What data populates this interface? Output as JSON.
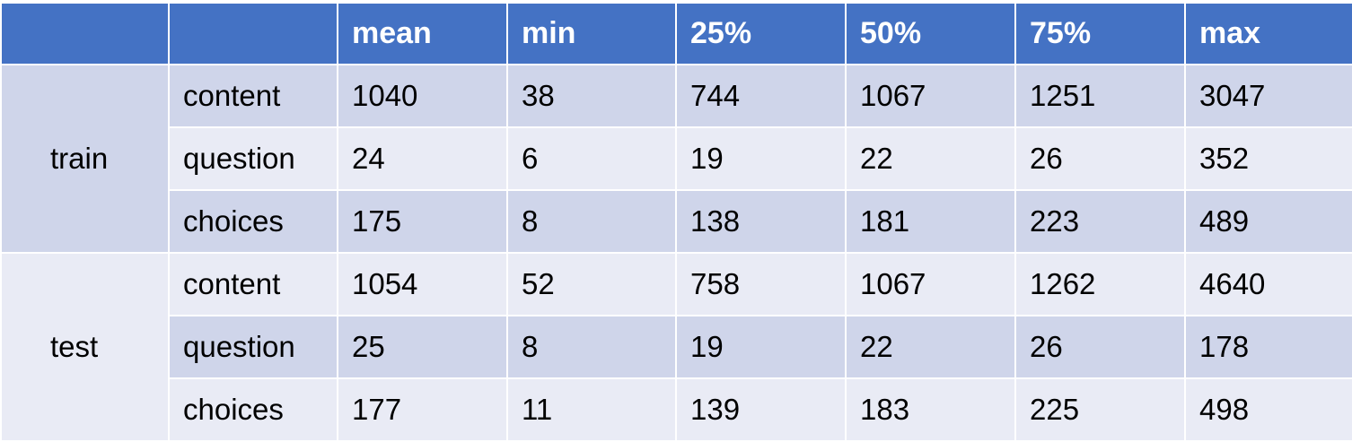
{
  "table": {
    "header": [
      "",
      "",
      "mean",
      "min",
      "25%",
      "50%",
      "75%",
      "max"
    ],
    "groups": [
      {
        "name": "train",
        "rows": [
          {
            "field": "content",
            "values": [
              "1040",
              "38",
              "744",
              "1067",
              "1251",
              "3047"
            ]
          },
          {
            "field": "question",
            "values": [
              "24",
              "6",
              "19",
              "22",
              "26",
              "352"
            ]
          },
          {
            "field": "choices",
            "values": [
              "175",
              "8",
              "138",
              "181",
              "223",
              "489"
            ]
          }
        ]
      },
      {
        "name": "test",
        "rows": [
          {
            "field": "content",
            "values": [
              "1054",
              "52",
              "758",
              "1067",
              "1262",
              "4640"
            ]
          },
          {
            "field": "question",
            "values": [
              "25",
              "8",
              "19",
              "22",
              "26",
              "178"
            ]
          },
          {
            "field": "choices",
            "values": [
              "177",
              "11",
              "139",
              "183",
              "225",
              "498"
            ]
          }
        ]
      }
    ]
  },
  "colors": {
    "header": "#4472c4",
    "band_dark": "#cfd5ea",
    "band_light": "#e9ebf5"
  }
}
